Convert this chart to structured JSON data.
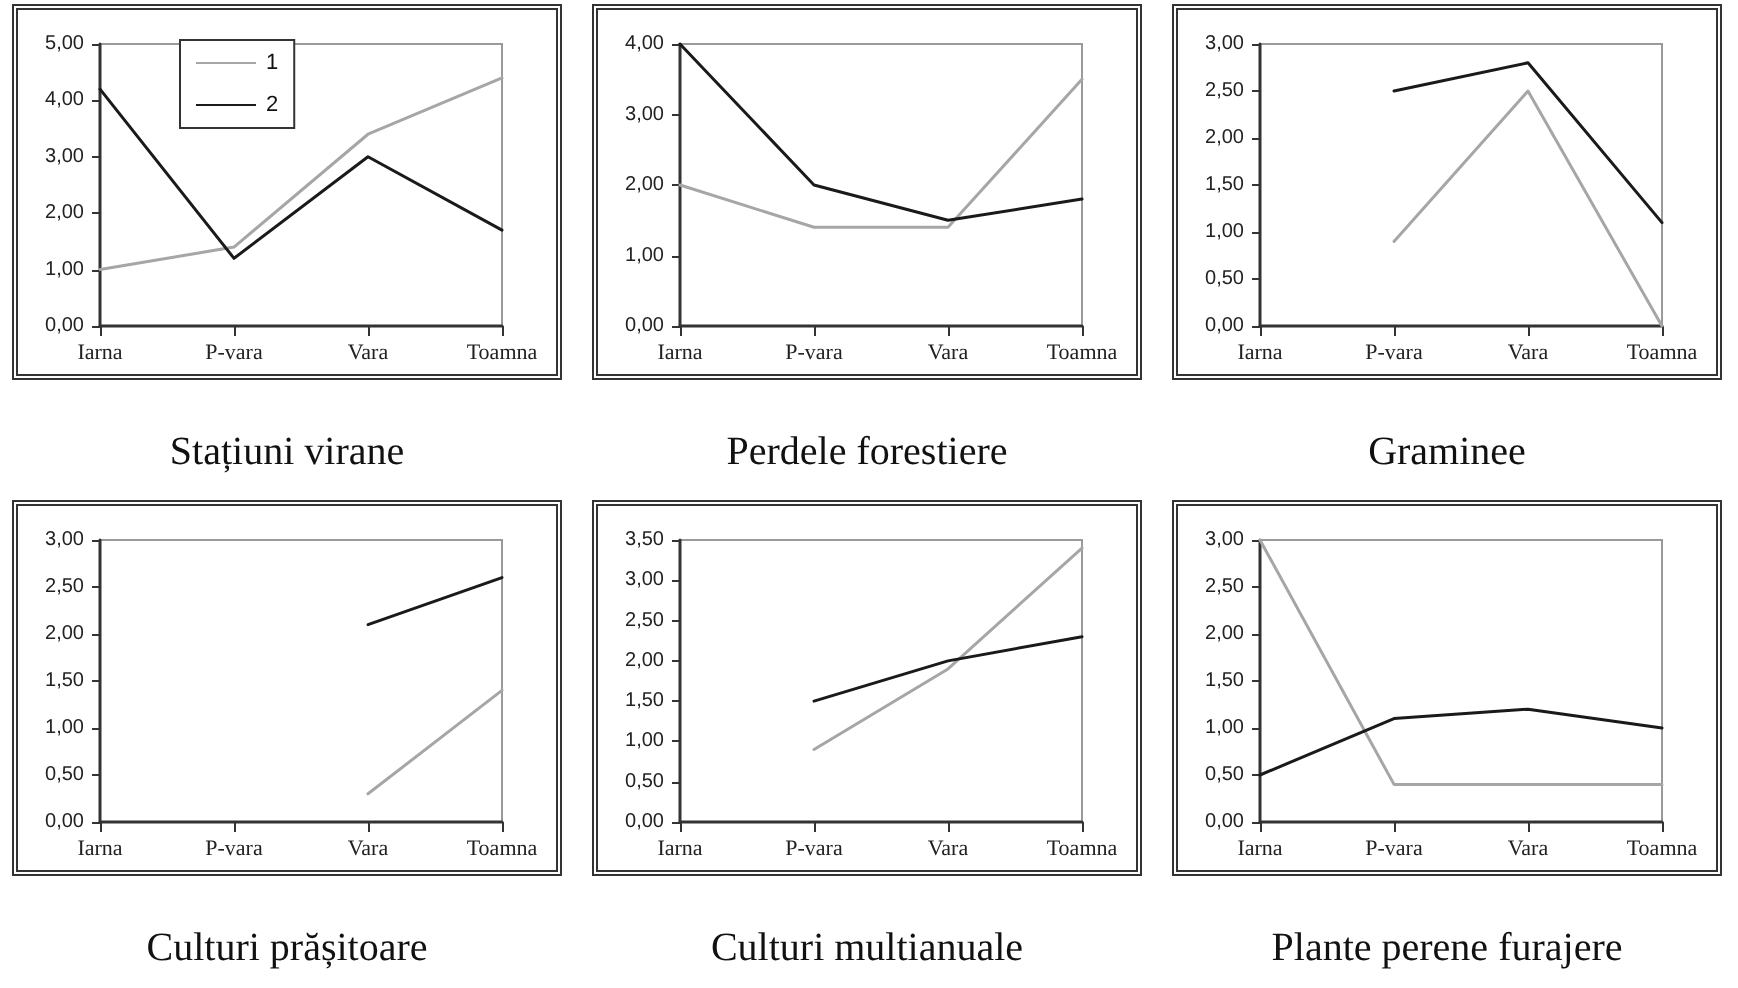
{
  "chart_data": [
    {
      "type": "line",
      "title": "Stațiuni virane",
      "categories": [
        "Iarna",
        "P-vara",
        "Vara",
        "Toamna"
      ],
      "series": [
        {
          "name": "1",
          "color": "#a6a6a6",
          "values": [
            1.0,
            1.4,
            3.4,
            4.4
          ]
        },
        {
          "name": "2",
          "color": "#1a1a1a",
          "values": [
            4.2,
            1.2,
            3.0,
            1.7
          ]
        }
      ],
      "ylim": [
        0,
        5
      ],
      "yticks": [
        {
          "value": 0,
          "label": "0,00"
        },
        {
          "value": 1,
          "label": "1,00"
        },
        {
          "value": 2,
          "label": "2,00"
        },
        {
          "value": 3,
          "label": "3,00"
        },
        {
          "value": 4,
          "label": "4,00"
        },
        {
          "value": 5,
          "label": "5,00"
        }
      ],
      "grid": false,
      "legend": "top left",
      "marker": "none",
      "line_style": "solid"
    },
    {
      "type": "line",
      "title": "Perdele forestiere",
      "categories": [
        "Iarna",
        "P-vara",
        "Vara",
        "Toamna"
      ],
      "series": [
        {
          "color": "#a6a6a6",
          "values": [
            2.0,
            1.4,
            1.4,
            3.5
          ]
        },
        {
          "color": "#1a1a1a",
          "values": [
            4.0,
            2.0,
            1.5,
            1.8
          ]
        }
      ],
      "ylim": [
        0,
        4
      ],
      "yticks": [
        {
          "value": 0,
          "label": "0,00"
        },
        {
          "value": 1,
          "label": "1,00"
        },
        {
          "value": 2,
          "label": "2,00"
        },
        {
          "value": 3,
          "label": "3,00"
        },
        {
          "value": 4,
          "label": "4,00"
        }
      ],
      "grid": false,
      "marker": "none",
      "line_style": "solid"
    },
    {
      "type": "line",
      "title": "Graminee",
      "categories": [
        "Iarna",
        "P-vara",
        "Vara",
        "Toamna"
      ],
      "series": [
        {
          "color": "#a6a6a6",
          "values": [
            null,
            0.9,
            2.5,
            0.0
          ]
        },
        {
          "color": "#1a1a1a",
          "values": [
            null,
            2.5,
            2.8,
            1.1
          ]
        }
      ],
      "ylim": [
        0,
        3
      ],
      "yticks": [
        {
          "value": 0,
          "label": "0,00"
        },
        {
          "value": 0.5,
          "label": "0,50"
        },
        {
          "value": 1,
          "label": "1,00"
        },
        {
          "value": 1.5,
          "label": "1,50"
        },
        {
          "value": 2,
          "label": "2,00"
        },
        {
          "value": 2.5,
          "label": "2,50"
        },
        {
          "value": 3,
          "label": "3,00"
        }
      ],
      "grid": false,
      "marker": "none",
      "line_style": "solid"
    },
    {
      "type": "line",
      "title": "Culturi prășitoare",
      "categories": [
        "Iarna",
        "P-vara",
        "Vara",
        "Toamna"
      ],
      "series": [
        {
          "color": "#a6a6a6",
          "values": [
            null,
            null,
            0.3,
            1.4
          ]
        },
        {
          "color": "#1a1a1a",
          "values": [
            null,
            null,
            2.1,
            2.6
          ]
        }
      ],
      "ylim": [
        0,
        3
      ],
      "yticks": [
        {
          "value": 0,
          "label": "0,00"
        },
        {
          "value": 0.5,
          "label": "0,50"
        },
        {
          "value": 1,
          "label": "1,00"
        },
        {
          "value": 1.5,
          "label": "1,50"
        },
        {
          "value": 2,
          "label": "2,00"
        },
        {
          "value": 2.5,
          "label": "2,50"
        },
        {
          "value": 3,
          "label": "3,00"
        }
      ],
      "grid": false,
      "marker": "none",
      "line_style": "solid"
    },
    {
      "type": "line",
      "title": "Culturi multianuale",
      "categories": [
        "Iarna",
        "P-vara",
        "Vara",
        "Toamna"
      ],
      "series": [
        {
          "color": "#a6a6a6",
          "values": [
            null,
            0.9,
            1.9,
            3.4
          ]
        },
        {
          "color": "#1a1a1a",
          "values": [
            null,
            1.5,
            2.0,
            2.3
          ]
        }
      ],
      "ylim": [
        0,
        3.5
      ],
      "yticks": [
        {
          "value": 0,
          "label": "0,00"
        },
        {
          "value": 0.5,
          "label": "0,50"
        },
        {
          "value": 1,
          "label": "1,00"
        },
        {
          "value": 1.5,
          "label": "1,50"
        },
        {
          "value": 2,
          "label": "2,00"
        },
        {
          "value": 2.5,
          "label": "2,50"
        },
        {
          "value": 3,
          "label": "3,00"
        },
        {
          "value": 3.5,
          "label": "3,50"
        }
      ],
      "grid": false,
      "marker": "none",
      "line_style": "solid"
    },
    {
      "type": "line",
      "title": "Plante perene furajere",
      "categories": [
        "Iarna",
        "P-vara",
        "Vara",
        "Toamna"
      ],
      "series": [
        {
          "color": "#a6a6a6",
          "values": [
            3.0,
            0.4,
            0.4,
            0.4
          ]
        },
        {
          "color": "#1a1a1a",
          "values": [
            0.5,
            1.1,
            1.2,
            1.0
          ]
        }
      ],
      "ylim": [
        0,
        3
      ],
      "yticks": [
        {
          "value": 0,
          "label": "0,00"
        },
        {
          "value": 0.5,
          "label": "0,50"
        },
        {
          "value": 1,
          "label": "1,00"
        },
        {
          "value": 1.5,
          "label": "1,50"
        },
        {
          "value": 2,
          "label": "2,00"
        },
        {
          "value": 2.5,
          "label": "2,50"
        },
        {
          "value": 3,
          "label": "3,00"
        }
      ],
      "grid": false,
      "marker": "none",
      "line_style": "solid"
    }
  ]
}
